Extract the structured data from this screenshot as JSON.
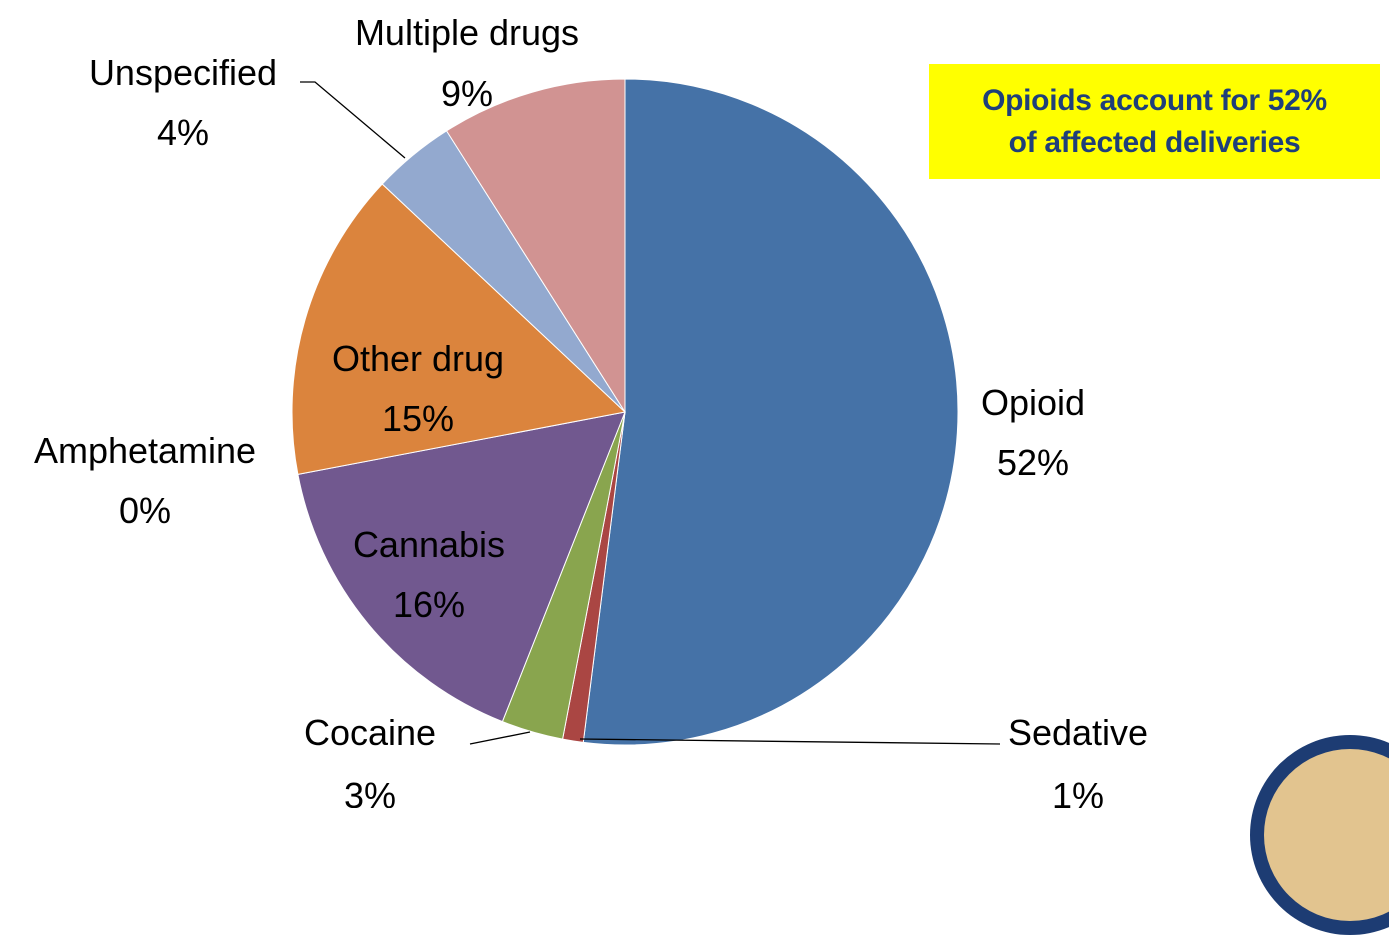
{
  "chart_data": {
    "type": "pie",
    "title": "",
    "start_angle_deg": 0,
    "direction": "clockwise",
    "slices": [
      {
        "label": "Opioid",
        "value": 52,
        "pct_label": "52%",
        "color": "#4572a7"
      },
      {
        "label": "Sedative",
        "value": 1,
        "pct_label": "1%",
        "color": "#aa4643"
      },
      {
        "label": "Cocaine",
        "value": 3,
        "pct_label": "3%",
        "color": "#89a54e"
      },
      {
        "label": "Cannabis",
        "value": 16,
        "pct_label": "16%",
        "color": "#71588f"
      },
      {
        "label": "Amphetamine",
        "value": 0,
        "pct_label": "0%",
        "color": "#a0a0a0"
      },
      {
        "label": "Other drug",
        "value": 15,
        "pct_label": "15%",
        "color": "#db843d"
      },
      {
        "label": "Unspecified",
        "value": 4,
        "pct_label": "4%",
        "color": "#93a9cf"
      },
      {
        "label": "Multiple drugs",
        "value": 9,
        "pct_label": "9%",
        "color": "#d19392"
      }
    ]
  },
  "callout": {
    "line1": "Opioids account for 52%",
    "line2": "of affected deliveries"
  }
}
